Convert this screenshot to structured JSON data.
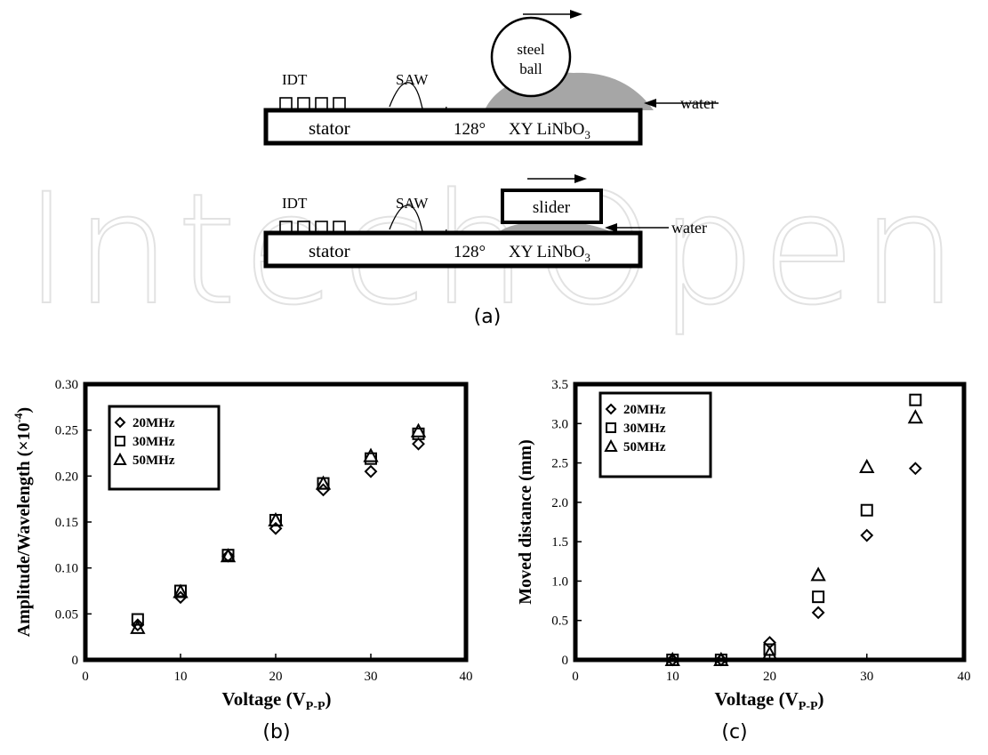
{
  "diagram": {
    "top": {
      "idt_label": "IDT",
      "saw_label": "SAW",
      "stator_label": "stator",
      "angle_label": "128°",
      "crystal_label": "XY LiNbO",
      "crystal_sub": "3",
      "ball_label_1": "steel",
      "ball_label_2": "ball",
      "water_label": "water"
    },
    "bottom": {
      "idt_label": "IDT",
      "saw_label": "SAW",
      "stator_label": "stator",
      "angle_label": "128°",
      "crystal_label": "XY LiNbO",
      "crystal_sub": "3",
      "slider_label": "slider",
      "water_label": "water"
    },
    "caption": "(a)"
  },
  "watermark": "IntechOpen",
  "colors": {
    "water": "#a6a6a6",
    "ink": "#000000"
  },
  "chart_data": [
    {
      "type": "scatter",
      "caption": "(b)",
      "ylabel": "Amplitude/Wavelength (×10",
      "ylabel_sup": "-4",
      "ylabel_close": ")",
      "xlabel": "Voltage (V",
      "xlabel_sub": "P-P",
      "xlabel_close": ")",
      "xlim": [
        0,
        40
      ],
      "ylim": [
        0,
        0.3
      ],
      "xticks": [
        "0",
        "10",
        "20",
        "30",
        "40"
      ],
      "yticks": [
        "0",
        "0.05",
        "0.10",
        "0.15",
        "0.20",
        "0.25",
        "0.30"
      ],
      "legend_position": "top-left",
      "series": [
        {
          "name": "20MHz",
          "marker": "diamond",
          "x": [
            5.5,
            10,
            15,
            20,
            25,
            30,
            35
          ],
          "y": [
            0.038,
            0.068,
            0.113,
            0.143,
            0.185,
            0.205,
            0.235
          ]
        },
        {
          "name": "30MHz",
          "marker": "square",
          "x": [
            5.5,
            10,
            15,
            20,
            25,
            30,
            35
          ],
          "y": [
            0.044,
            0.075,
            0.114,
            0.152,
            0.192,
            0.219,
            0.246
          ]
        },
        {
          "name": "50MHz",
          "marker": "triangle",
          "x": [
            5.5,
            10,
            15,
            20,
            25,
            30,
            35
          ],
          "y": [
            0.035,
            0.074,
            0.113,
            0.152,
            0.192,
            0.222,
            0.249
          ]
        }
      ]
    },
    {
      "type": "scatter",
      "caption": "(c)",
      "ylabel": "Moved distance (mm)",
      "ylabel_sup": "",
      "ylabel_close": "",
      "xlabel": "Voltage (V",
      "xlabel_sub": "P-P",
      "xlabel_close": ")",
      "xlim": [
        0,
        40
      ],
      "ylim": [
        0,
        3.5
      ],
      "xticks": [
        "0",
        "10",
        "20",
        "30",
        "40"
      ],
      "yticks": [
        "0",
        "0.5",
        "1.0",
        "1.5",
        "2.0",
        "2.5",
        "3.0",
        "3.5"
      ],
      "legend_position": "top-left",
      "series": [
        {
          "name": "20MHz",
          "marker": "diamond",
          "x": [
            10,
            15,
            20,
            25,
            30,
            35
          ],
          "y": [
            0.0,
            0.0,
            0.22,
            0.6,
            1.58,
            2.43
          ]
        },
        {
          "name": "30MHz",
          "marker": "square",
          "x": [
            10,
            15,
            20,
            25,
            30,
            35
          ],
          "y": [
            0.0,
            0.0,
            0.13,
            0.8,
            1.9,
            3.3
          ]
        },
        {
          "name": "50MHz",
          "marker": "triangle",
          "x": [
            10,
            15,
            20,
            25,
            30,
            35
          ],
          "y": [
            0.0,
            0.0,
            0.08,
            1.08,
            2.45,
            3.08
          ]
        }
      ]
    }
  ]
}
